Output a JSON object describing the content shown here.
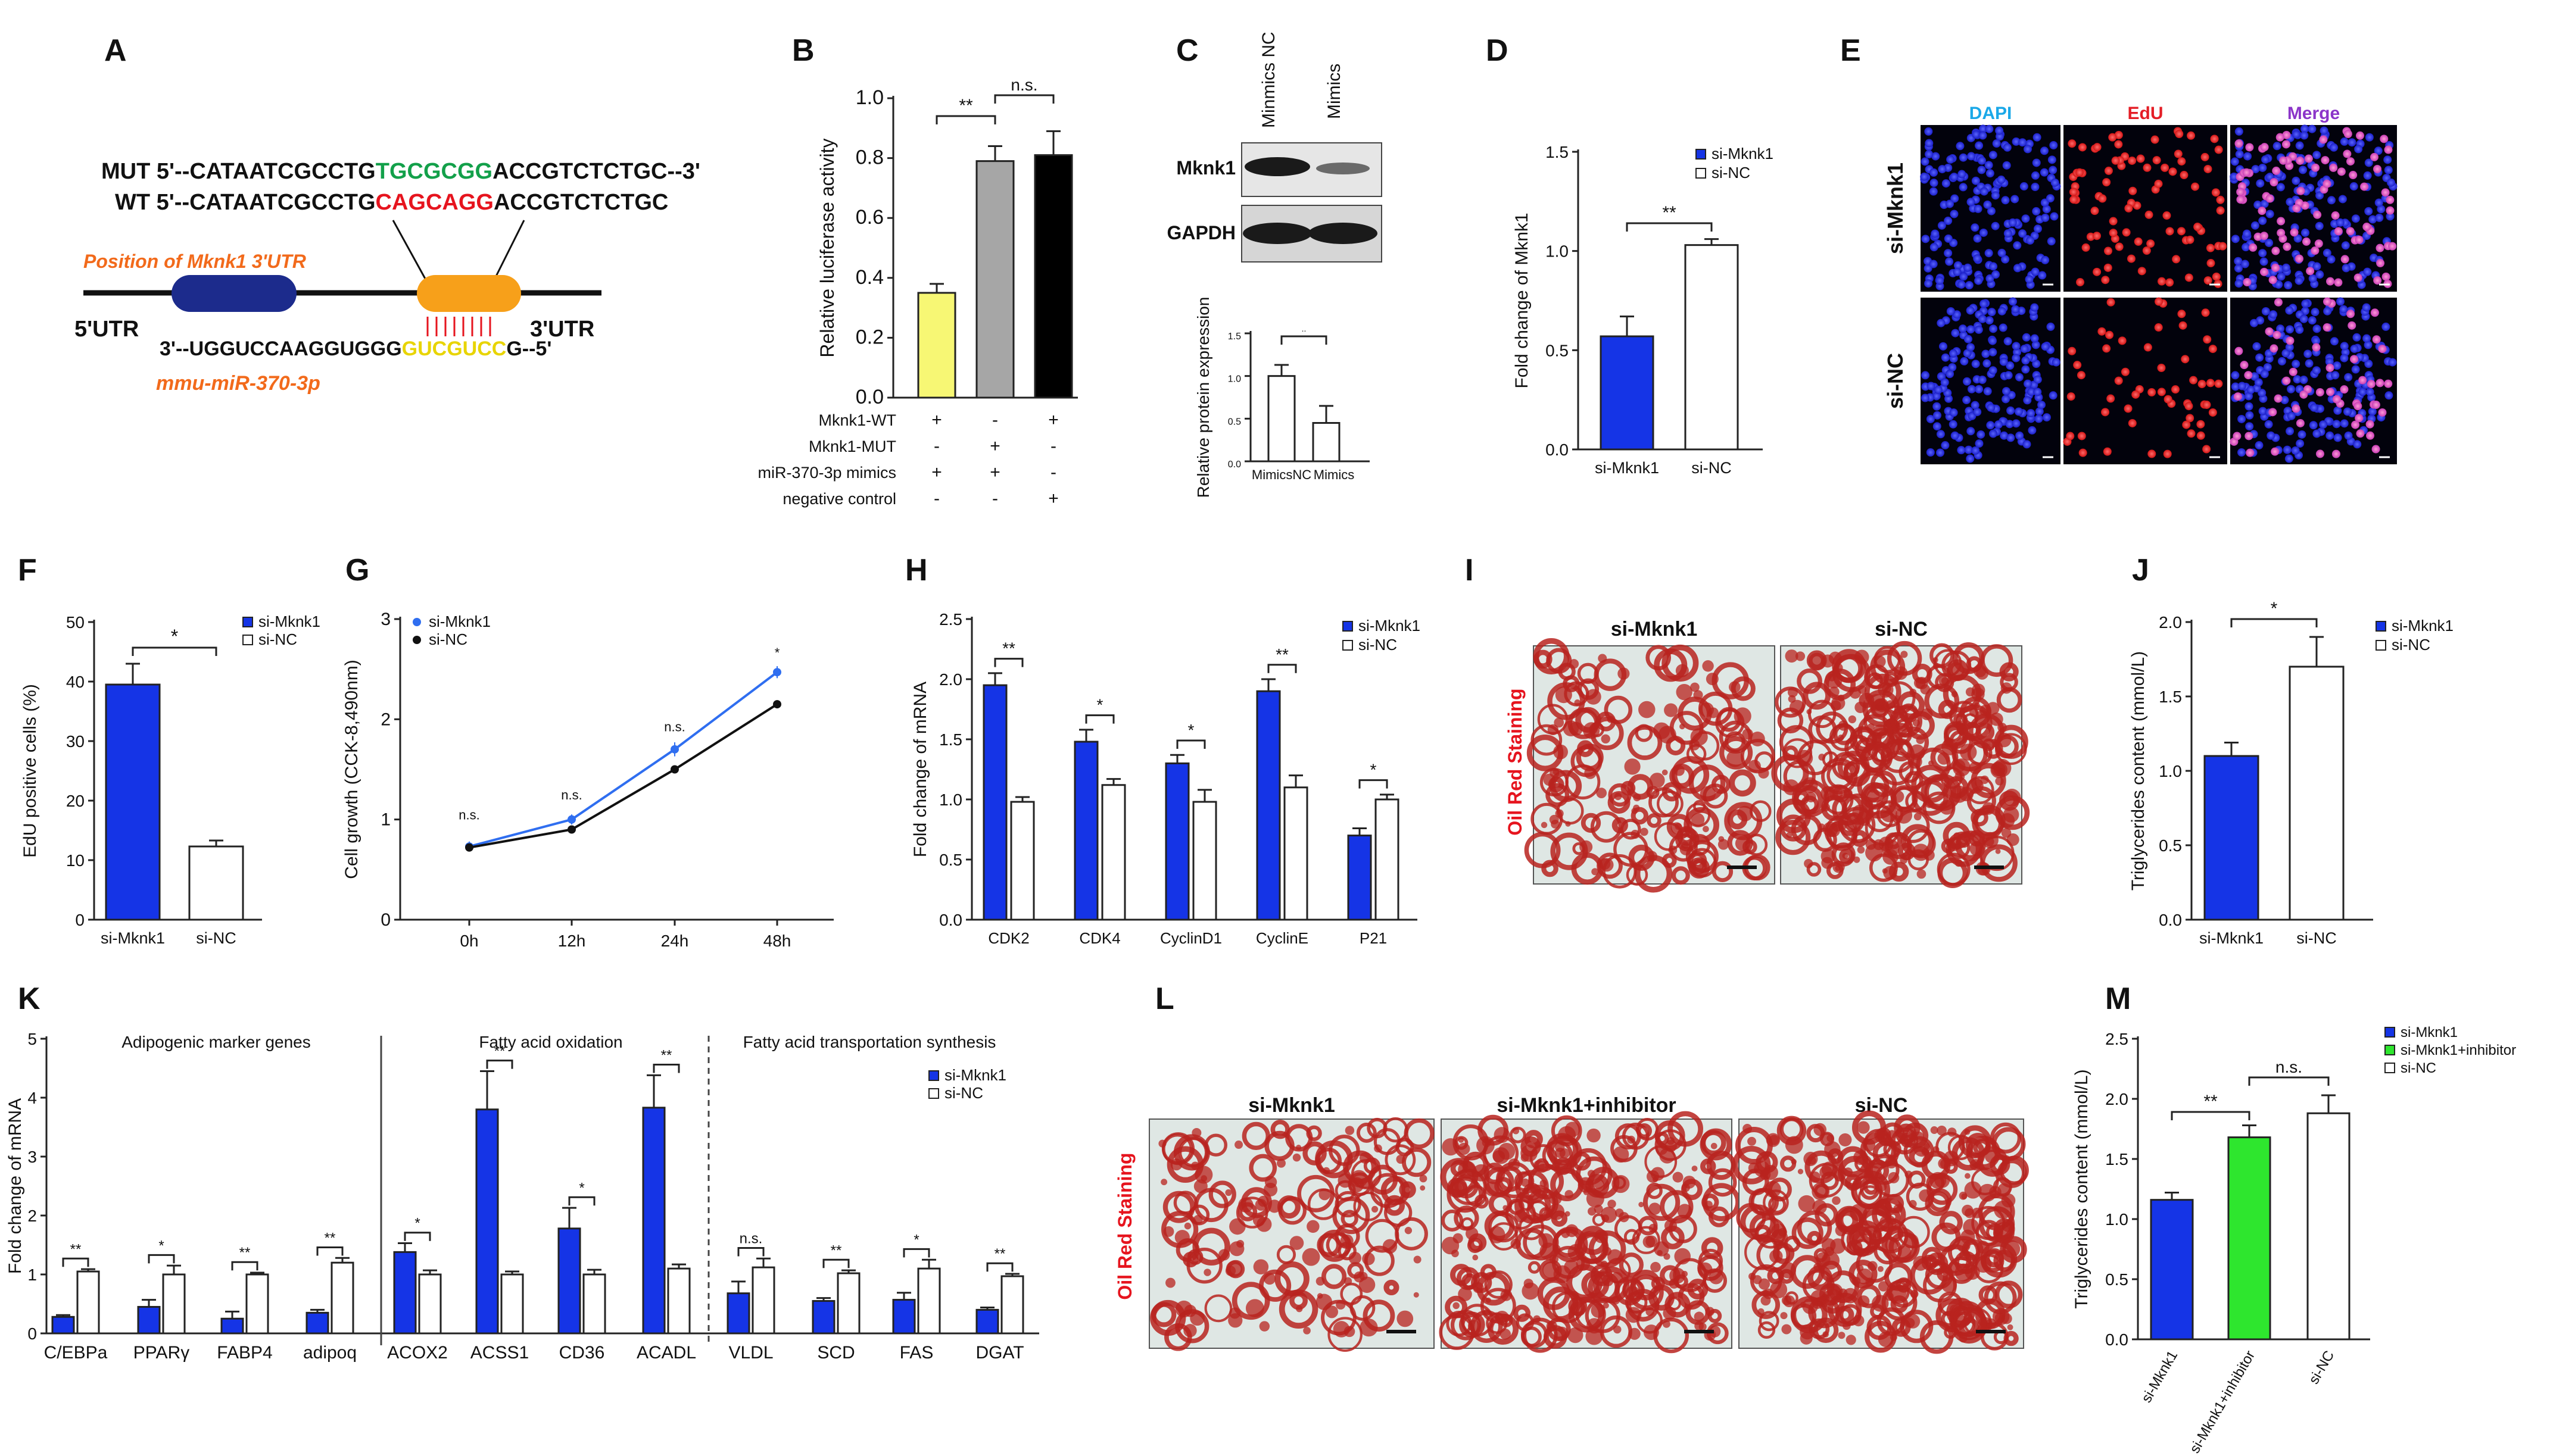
{
  "panel_letters": [
    "A",
    "B",
    "C",
    "D",
    "E",
    "F",
    "G",
    "H",
    "I",
    "J",
    "K",
    "L",
    "M"
  ],
  "A": {
    "mut_prefix": "MUT 5'--CATAATCGCCTG",
    "mut_highlight": "TGCGCGG",
    "mut_suffix": "ACCGTCTCTGC--3'",
    "wt_prefix": "WT 5'--CATAATCGCCTG",
    "wt_highlight": "CAGCAGG",
    "wt_suffix": "ACCGTCTCTGC",
    "position_label": "Position of Mknk1 3'UTR",
    "utr5": "5'UTR",
    "utr3": "3'UTR",
    "mir_prefix": "3'--UGGUCCAAGGUGGG",
    "mir_highlight": "GUCGUCC",
    "mir_suffix": "G--5'",
    "mir_name": "mmu-miR-370-3p",
    "colors": {
      "mutant": "#13a04a",
      "wildtype": "#e6141e",
      "seed": "#e8d400",
      "label": "#f26a1b",
      "oval_left": "#1c2b8c",
      "oval_right": "#f7a01a"
    }
  },
  "B": {
    "ylabel": "Relative luciferase activity",
    "yticks": [
      "0.0",
      "0.2",
      "0.4",
      "0.6",
      "0.8",
      "1.0"
    ],
    "sig": [
      "**",
      "n.s."
    ],
    "row_labels": [
      "Mknk1-WT",
      "Mknk1-MUT",
      "miR-370-3p  mimics",
      "negative control"
    ],
    "row_signs": [
      [
        "+",
        "-",
        "+"
      ],
      [
        "-",
        "+",
        "-"
      ],
      [
        "+",
        "+",
        "-"
      ],
      [
        "-",
        "-",
        "+"
      ]
    ]
  },
  "C": {
    "lane_labels": [
      "Minmics NC",
      "Mimics"
    ],
    "blot_labels": [
      "Mknk1",
      "GAPDH"
    ],
    "ylabel": "Relative protein expression",
    "xlabels": [
      "MimicsNC",
      "Mimics"
    ],
    "yticks": [
      "0.0",
      "0.5",
      "1.0",
      "1.5"
    ]
  },
  "D": {
    "ylabel": "Fold change of Mknk1",
    "yticks": [
      "0.0",
      "0.5",
      "1.0",
      "1.5"
    ],
    "legend": [
      "si-Mknk1",
      "si-NC"
    ],
    "sig": "**"
  },
  "E": {
    "channels": [
      "DAPI",
      "EdU",
      "Merge"
    ],
    "rows": [
      "si-Mknk1",
      "si-NC"
    ],
    "colors": {
      "DAPI": "#1aa8e8",
      "EdU": "#e41e26",
      "Merge": "#8b35c9"
    }
  },
  "F": {
    "ylabel": "EdU positive cells (%)",
    "yticks": [
      "0",
      "10",
      "20",
      "30",
      "40",
      "50"
    ],
    "legend": [
      "si-Mknk1",
      "si-NC"
    ],
    "sig": "*"
  },
  "G": {
    "ylabel": "Cell growth (CCK-8,490nm)",
    "yticks": [
      "0",
      "1",
      "2",
      "3"
    ],
    "xticks": [
      "0h",
      "12h",
      "24h",
      "48h"
    ],
    "legend": [
      "si-Mknk1",
      "si-NC"
    ],
    "sig": [
      "n.s.",
      "n.s.",
      "n.s.",
      "*"
    ]
  },
  "H": {
    "ylabel": "Fold change of mRNA",
    "yticks": [
      "0.0",
      "0.5",
      "1.0",
      "1.5",
      "2.0",
      "2.5"
    ],
    "legend": [
      "si-Mknk1",
      "si-NC"
    ],
    "sig": [
      "**",
      "*",
      "*",
      "**",
      "*"
    ]
  },
  "I": {
    "side_label": "Oil Red Staining",
    "titles": [
      "si-Mknk1",
      "si-NC"
    ]
  },
  "J": {
    "ylabel": "Triglycerides content (mmol/L)",
    "yticks": [
      "0.0",
      "0.5",
      "1.0",
      "1.5",
      "2.0"
    ],
    "legend": [
      "si-Mknk1",
      "si-NC"
    ],
    "sig": "*"
  },
  "K": {
    "ylabel": "Fold change of mRNA",
    "yticks": [
      "0",
      "1",
      "2",
      "3",
      "4",
      "5"
    ],
    "group_titles": [
      "Adipogenic marker genes",
      "Fatty acid oxidation",
      "Fatty acid transportation synthesis"
    ],
    "legend": [
      "si-Mknk1",
      "si-NC"
    ],
    "sig": [
      "**",
      "*",
      "**",
      "**",
      "*",
      "**",
      "*",
      "**",
      "n.s.",
      "**",
      "*",
      "**"
    ]
  },
  "L": {
    "side_label": "Oil Red Staining",
    "titles": [
      "si-Mknk1",
      "si-Mknk1+inhibitor",
      "si-NC"
    ]
  },
  "M": {
    "ylabel": "Triglycerides content (mmol/L)",
    "yticks": [
      "0.0",
      "0.5",
      "1.0",
      "1.5",
      "2.0",
      "2.5"
    ],
    "legend": [
      "si-Mknk1",
      "si-Mknk1+inhibitor",
      "si-NC"
    ],
    "sig": [
      "**",
      "n.s."
    ]
  },
  "colors": {
    "blue": "#1534e6",
    "white": "#ffffff",
    "yellow": "#f7f774",
    "gray": "#a6a6a6",
    "black": "#000000",
    "green": "#2ee62e",
    "g_blue": "#2f6ef0",
    "g_black": "#111111",
    "oilred": "#b8231e",
    "oilbg": "#dfe7e4"
  },
  "chart_data": [
    {
      "panel": "B",
      "type": "bar",
      "categories": [
        "WT + mimics",
        "MUT + mimics",
        "WT + negative control"
      ],
      "values": [
        0.35,
        0.79,
        0.81
      ],
      "errors": [
        0.03,
        0.05,
        0.08
      ],
      "ylim": [
        0,
        1.0
      ],
      "ylabel": "Relative luciferase activity",
      "colors": [
        "#f7f774",
        "#a6a6a6",
        "#000000"
      ]
    },
    {
      "panel": "C",
      "type": "bar",
      "categories": [
        "MimicsNC",
        "Mimics"
      ],
      "values": [
        1.0,
        0.45
      ],
      "errors": [
        0.13,
        0.2
      ],
      "ylim": [
        0,
        1.5
      ],
      "ylabel": "Relative protein expression",
      "colors": [
        "#ffffff",
        "#ffffff"
      ]
    },
    {
      "panel": "D",
      "type": "bar",
      "categories": [
        "si-Mknk1",
        "si-NC"
      ],
      "values": [
        0.57,
        1.03
      ],
      "errors": [
        0.1,
        0.03
      ],
      "ylim": [
        0,
        1.5
      ],
      "ylabel": "Fold change of Mknk1",
      "colors": [
        "#1534e6",
        "#ffffff"
      ]
    },
    {
      "panel": "F",
      "type": "bar",
      "categories": [
        "si-Mknk1",
        "si-NC"
      ],
      "values": [
        39.5,
        12.3
      ],
      "errors": [
        3.5,
        1.0
      ],
      "ylim": [
        0,
        50
      ],
      "ylabel": "EdU positive cells (%)",
      "colors": [
        "#1534e6",
        "#ffffff"
      ]
    },
    {
      "panel": "G",
      "type": "line",
      "x": [
        "0h",
        "12h",
        "24h",
        "48h"
      ],
      "ylim": [
        0,
        3
      ],
      "ylabel": "Cell growth (CCK-8,490nm)",
      "series": [
        {
          "name": "si-Mknk1",
          "values": [
            0.73,
            1.0,
            1.7,
            2.47
          ],
          "errors": [
            0.05,
            0.05,
            0.07,
            0.06
          ],
          "color": "#2f6ef0"
        },
        {
          "name": "si-NC",
          "values": [
            0.72,
            0.9,
            1.5,
            2.15
          ],
          "errors": [
            0.03,
            0.03,
            0.03,
            0.04
          ],
          "color": "#111111"
        }
      ]
    },
    {
      "panel": "H",
      "type": "bar",
      "categories": [
        "CDK2",
        "CDK4",
        "CyclinD1",
        "CyclinE",
        "P21"
      ],
      "ylim": [
        0,
        2.5
      ],
      "ylabel": "Fold change of mRNA",
      "series": [
        {
          "name": "si-Mknk1",
          "values": [
            1.95,
            1.48,
            1.3,
            1.9,
            0.7
          ],
          "errors": [
            0.1,
            0.1,
            0.07,
            0.1,
            0.06
          ],
          "color": "#1534e6"
        },
        {
          "name": "si-NC",
          "values": [
            0.98,
            1.12,
            0.98,
            1.1,
            1.0
          ],
          "errors": [
            0.04,
            0.05,
            0.1,
            0.1,
            0.04
          ],
          "color": "#ffffff"
        }
      ]
    },
    {
      "panel": "J",
      "type": "bar",
      "categories": [
        "si-Mknk1",
        "si-NC"
      ],
      "values": [
        1.1,
        1.7
      ],
      "errors": [
        0.09,
        0.2
      ],
      "ylim": [
        0,
        2.0
      ],
      "ylabel": "Triglycerides content (mmol/L)",
      "colors": [
        "#1534e6",
        "#ffffff"
      ]
    },
    {
      "panel": "K",
      "type": "bar",
      "categories": [
        "C/EBPa",
        "PPARγ",
        "FABP4",
        "adipoq",
        "ACOX2",
        "ACSS1",
        "CD36",
        "ACADL",
        "VLDL",
        "SCD",
        "FAS",
        "DGAT"
      ],
      "ylim": [
        0,
        5
      ],
      "ylabel": "Fold change of mRNA",
      "series": [
        {
          "name": "si-Mknk1",
          "values": [
            0.28,
            0.45,
            0.25,
            0.35,
            1.38,
            3.8,
            1.78,
            3.83,
            0.68,
            0.55,
            0.57,
            0.4
          ],
          "errors": [
            0.03,
            0.12,
            0.12,
            0.05,
            0.15,
            0.65,
            0.35,
            0.55,
            0.2,
            0.05,
            0.12,
            0.04
          ],
          "color": "#1534e6"
        },
        {
          "name": "si-NC",
          "values": [
            1.05,
            1.0,
            1.0,
            1.2,
            1.0,
            1.0,
            1.0,
            1.1,
            1.12,
            1.02,
            1.1,
            0.97
          ],
          "errors": [
            0.04,
            0.15,
            0.03,
            0.08,
            0.07,
            0.05,
            0.08,
            0.07,
            0.15,
            0.05,
            0.15,
            0.04
          ],
          "color": "#ffffff"
        }
      ]
    },
    {
      "panel": "M",
      "type": "bar",
      "categories": [
        "si-Mknk1",
        "si-Mknk1+inhibitor",
        "si-NC"
      ],
      "values": [
        1.16,
        1.68,
        1.88
      ],
      "errors": [
        0.06,
        0.1,
        0.15
      ],
      "ylim": [
        0,
        2.5
      ],
      "ylabel": "Triglycerides content (mmol/L)",
      "colors": [
        "#1534e6",
        "#2ee62e",
        "#ffffff"
      ]
    }
  ]
}
